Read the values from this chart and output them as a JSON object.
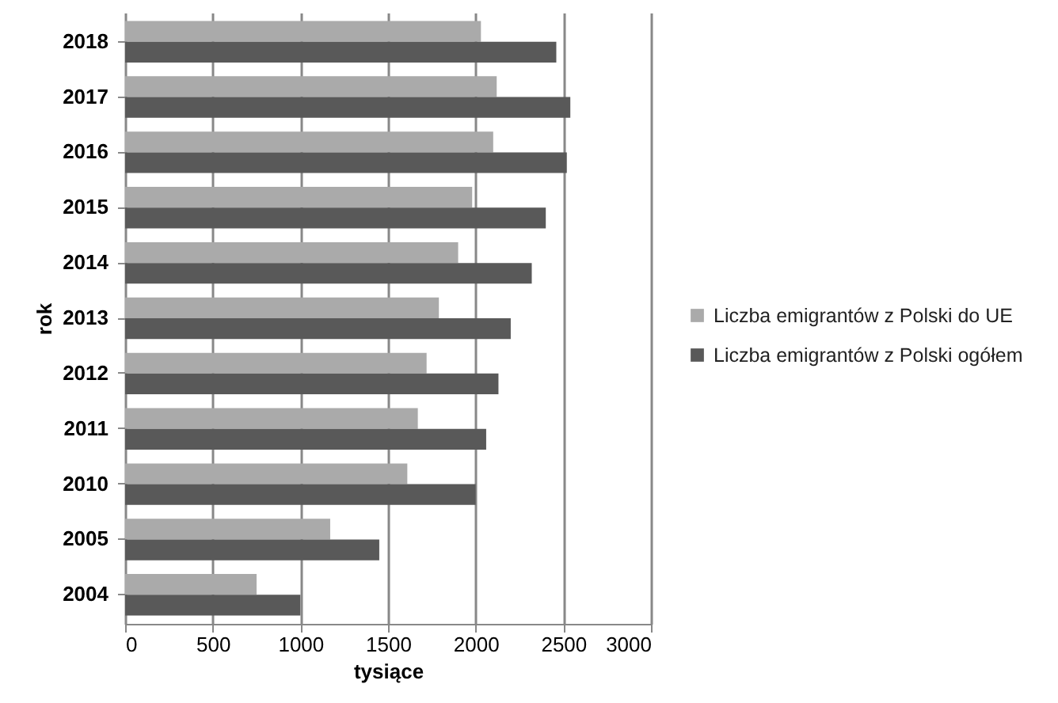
{
  "chart_data": {
    "type": "bar",
    "orientation": "horizontal",
    "xlabel": "tysiące",
    "ylabel": "rok",
    "categories": [
      "2018",
      "2017",
      "2016",
      "2015",
      "2014",
      "2013",
      "2012",
      "2011",
      "2010",
      "2005",
      "2004"
    ],
    "series": [
      {
        "name": "Liczba emigrantów z Polski do UE",
        "color": "#aaaaaa",
        "values": [
          2030,
          2120,
          2100,
          1980,
          1900,
          1790,
          1720,
          1670,
          1610,
          1170,
          750
        ]
      },
      {
        "name": "Liczba emigrantów z Polski ogółem",
        "color": "#595959",
        "values": [
          2460,
          2540,
          2520,
          2400,
          2320,
          2200,
          2130,
          2060,
          2000,
          1450,
          1000
        ]
      }
    ],
    "xlim": [
      0,
      3000
    ],
    "xticks": [
      0,
      500,
      1000,
      1500,
      2000,
      2500,
      3000
    ],
    "grid": "x",
    "legend": "right"
  }
}
